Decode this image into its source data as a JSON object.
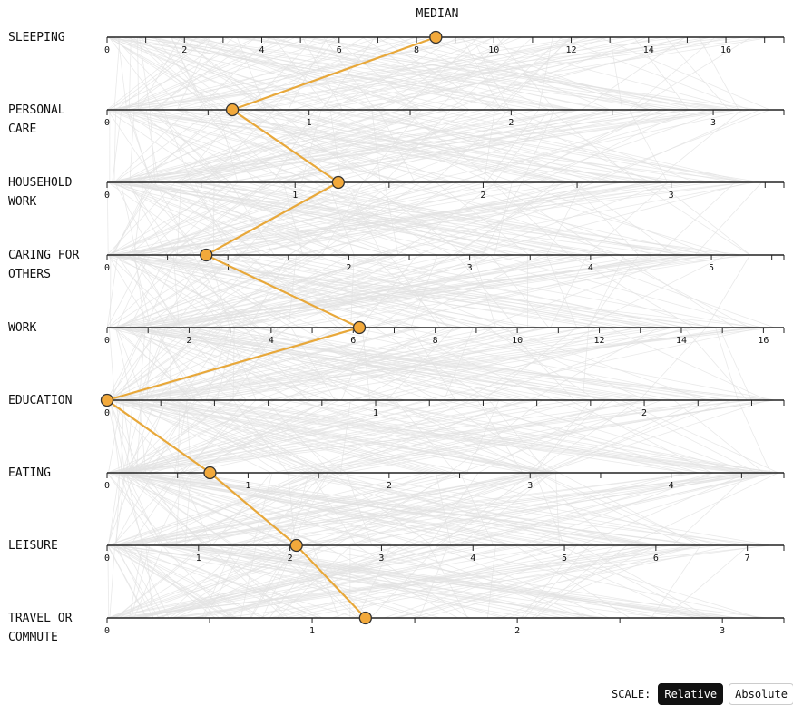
{
  "chart_data": {
    "type": "parallel-coordinates",
    "title": "MEDIAN",
    "scale": {
      "label": "SCALE:",
      "options": [
        "Relative",
        "Absolute"
      ],
      "selected": "Relative"
    },
    "axes": [
      {
        "name": "SLEEPING",
        "label_lines": [
          "SLEEPING"
        ],
        "range": [
          0,
          17.5
        ],
        "ticks": [
          0,
          2,
          4,
          6,
          8,
          10,
          12,
          14,
          16
        ],
        "minor_ticks": [
          1,
          3,
          5,
          7,
          9,
          11,
          13,
          15,
          17
        ],
        "median": 8.5
      },
      {
        "name": "PERSONAL CARE",
        "label_lines": [
          "PERSONAL",
          "CARE"
        ],
        "range": [
          0,
          3.35
        ],
        "ticks": [
          0,
          1,
          2,
          3
        ],
        "minor_ticks": [
          0.5,
          1.5,
          2.5
        ],
        "median": 0.62
      },
      {
        "name": "HOUSEHOLD WORK",
        "label_lines": [
          "HOUSEHOLD",
          "WORK"
        ],
        "range": [
          0,
          3.6
        ],
        "ticks": [
          0,
          1,
          2,
          3
        ],
        "minor_ticks": [
          0.5,
          1.5,
          2.5,
          3.5
        ],
        "median": 1.23
      },
      {
        "name": "CARING FOR OTHERS",
        "label_lines": [
          "CARING FOR",
          "OTHERS"
        ],
        "range": [
          0,
          5.6
        ],
        "ticks": [
          0,
          1,
          2,
          3,
          4,
          5
        ],
        "minor_ticks": [
          0.5,
          1.5,
          2.5,
          3.5,
          4.5,
          5.5
        ],
        "median": 0.82
      },
      {
        "name": "WORK",
        "label_lines": [
          "WORK"
        ],
        "range": [
          0,
          16.5
        ],
        "ticks": [
          0,
          2,
          4,
          6,
          8,
          10,
          12,
          14,
          16
        ],
        "minor_ticks": [
          1,
          3,
          5,
          7,
          9,
          11,
          13,
          15
        ],
        "median": 6.15
      },
      {
        "name": "EDUCATION",
        "label_lines": [
          "EDUCATION"
        ],
        "range": [
          0,
          2.52
        ],
        "ticks": [
          0,
          1,
          2
        ],
        "minor_ticks": [
          0.2,
          0.4,
          0.6,
          0.8,
          1.2,
          1.4,
          1.6,
          1.8,
          2.2,
          2.4
        ],
        "median": 0
      },
      {
        "name": "EATING",
        "label_lines": [
          "EATING"
        ],
        "range": [
          0,
          4.8
        ],
        "ticks": [
          0,
          1,
          2,
          3,
          4
        ],
        "minor_ticks": [
          0.5,
          1.5,
          2.5,
          3.5,
          4.5
        ],
        "median": 0.73
      },
      {
        "name": "LEISURE",
        "label_lines": [
          "LEISURE"
        ],
        "range": [
          0,
          7.4
        ],
        "ticks": [
          0,
          1,
          2,
          3,
          4,
          5,
          6,
          7
        ],
        "minor_ticks": [],
        "median": 2.07
      },
      {
        "name": "TRAVEL OR COMMUTE",
        "label_lines": [
          "TRAVEL OR",
          "COMMUTE"
        ],
        "range": [
          0,
          3.3
        ],
        "ticks": [
          0,
          1,
          2,
          3
        ],
        "minor_ticks": [
          0.5,
          1.5,
          2.5
        ],
        "median": 1.26
      }
    ]
  },
  "colors": {
    "median_line": "#e8a83a",
    "median_dot_fill": "#f2a93b",
    "median_dot_stroke": "#333333",
    "background_lines": "#e2e2e2",
    "axis": "#222222"
  }
}
